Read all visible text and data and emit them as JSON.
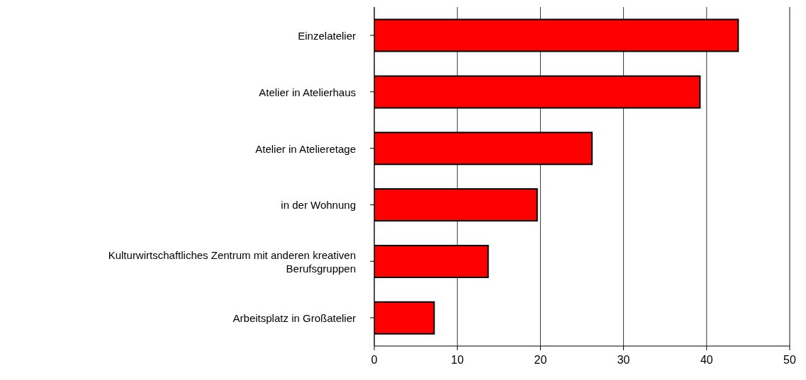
{
  "chart_data": {
    "type": "bar",
    "orientation": "horizontal",
    "categories": [
      "Einzelatelier",
      "Atelier in Atelierhaus",
      "Atelier in Atelieretage",
      "in der Wohnung",
      "Kulturwirtschaftliches Zentrum mit anderen kreativen Berufsgruppen",
      "Arbeitsplatz in Großatelier"
    ],
    "values": [
      43.8,
      39.2,
      26.2,
      19.6,
      13.7,
      7.2
    ],
    "color": "#ff0000",
    "xlim": [
      0,
      50
    ],
    "xticks": [
      0,
      10,
      20,
      30,
      40,
      50
    ],
    "grid": "x"
  }
}
